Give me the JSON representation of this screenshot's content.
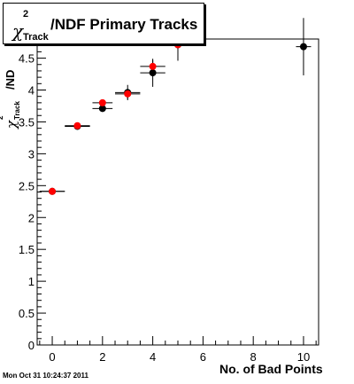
{
  "chart_data": {
    "type": "scatter",
    "title": {
      "symbol": "χ",
      "superscript": "2",
      "subscript": "Track",
      "rest": "/NDF Primary Tracks"
    },
    "ylabel": {
      "symbol": "χ",
      "superscript": "2",
      "subscript": "Track",
      "rest": "/ND"
    },
    "xlabel": "No. of Bad Points",
    "xlim": [
      -0.6,
      10.6
    ],
    "ylim": [
      0,
      4.8
    ],
    "x_ticks": [
      0,
      2,
      4,
      6,
      8,
      10
    ],
    "y_ticks": [
      0,
      0.5,
      1,
      1.5,
      2,
      2.5,
      3,
      3.5,
      4,
      4.5
    ],
    "y_tick_labels": [
      "0",
      "0.5",
      "1",
      "1.5",
      "2",
      "2.5",
      "3",
      "3.5",
      "4",
      "4.5"
    ],
    "grid": false,
    "series": [
      {
        "color": "#000000",
        "points": [
          {
            "x": 0,
            "y": 2.41,
            "xerr": 0.5,
            "yerr": 0.02
          },
          {
            "x": 1,
            "y": 3.43,
            "xerr": 0.5,
            "yerr": 0.03
          },
          {
            "x": 2,
            "y": 3.71,
            "xerr": 0.4,
            "yerr": 0.05
          },
          {
            "x": 3,
            "y": 3.96,
            "xerr": 0.5,
            "yerr": 0.12
          },
          {
            "x": 4,
            "y": 4.27,
            "xerr": 0.5,
            "yerr": 0.22
          },
          {
            "x": 5,
            "y": 4.71,
            "xerr": 0.5,
            "yerr": 0.25
          },
          {
            "x": 10,
            "y": 4.68,
            "xerr": 0.3,
            "yerr": 0.45
          }
        ]
      },
      {
        "color": "#ff0000",
        "points": [
          {
            "x": 0,
            "y": 2.41,
            "xerr": 0.5,
            "yerr": 0.02
          },
          {
            "x": 1,
            "y": 3.44,
            "xerr": 0.5,
            "yerr": 0.03
          },
          {
            "x": 2,
            "y": 3.8,
            "xerr": 0.4,
            "yerr": 0.05
          },
          {
            "x": 3,
            "y": 3.94,
            "xerr": 0.5,
            "yerr": 0.08
          },
          {
            "x": 4,
            "y": 4.37,
            "xerr": 0.5,
            "yerr": 0.1
          },
          {
            "x": 5,
            "y": 4.71,
            "xerr": 0.5,
            "yerr": 0.1
          }
        ]
      }
    ]
  },
  "footer_timestamp": "Mon Oct 31 10:24:37 2011"
}
